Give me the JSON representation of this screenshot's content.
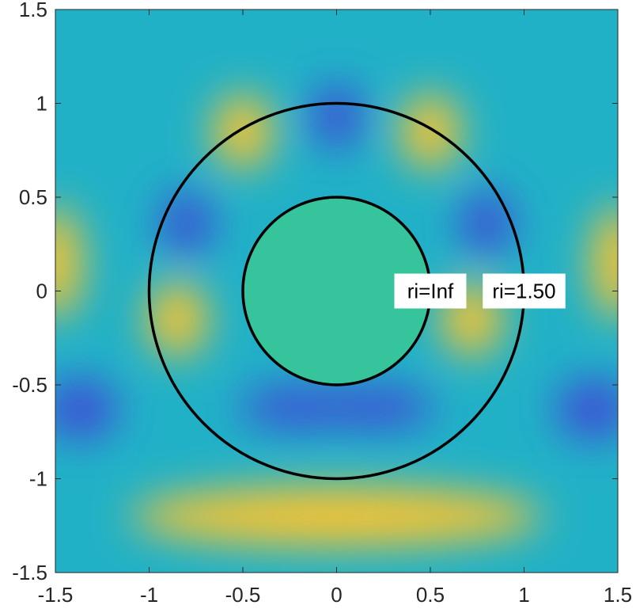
{
  "chart_data": {
    "type": "heatmap",
    "title": "",
    "xlabel": "",
    "ylabel": "",
    "xlim": [
      -1.5,
      1.5
    ],
    "ylim": [
      -1.5,
      1.5
    ],
    "xticks": [
      -1.5,
      -1,
      -0.5,
      0,
      0.5,
      1,
      1.5
    ],
    "yticks": [
      -1.5,
      -1,
      -0.5,
      0,
      0.5,
      1,
      1.5
    ],
    "xtick_labels": [
      "-1.5",
      "-1",
      "-0.5",
      "0",
      "0.5",
      "1",
      "1.5"
    ],
    "ytick_labels": [
      "-1.5",
      "-1",
      "-0.5",
      "0",
      "0.5",
      "1",
      "1.5"
    ],
    "colormap": "parula",
    "grid": false,
    "legend": "none",
    "inner_disk_color": "#35c49c",
    "circles": [
      {
        "cx": 0,
        "cy": 0,
        "r": 0.5,
        "label": "ri=Inf"
      },
      {
        "cx": 0,
        "cy": 0,
        "r": 1.0,
        "label": "ri=1.50"
      }
    ],
    "field_features": [
      {
        "x": 0.0,
        "y": 0.93,
        "level": "low"
      },
      {
        "x": -0.8,
        "y": 0.36,
        "level": "low"
      },
      {
        "x": 0.8,
        "y": 0.36,
        "level": "low"
      },
      {
        "x": -1.37,
        "y": -0.63,
        "level": "low"
      },
      {
        "x": 1.37,
        "y": -0.63,
        "level": "low"
      },
      {
        "x": -0.2,
        "y": -0.62,
        "level": "low"
      },
      {
        "x": 0.2,
        "y": -0.62,
        "level": "low"
      },
      {
        "x": -0.5,
        "y": 0.85,
        "level": "high"
      },
      {
        "x": 0.5,
        "y": 0.85,
        "level": "high"
      },
      {
        "x": -0.85,
        "y": -0.15,
        "level": "high"
      },
      {
        "x": 0.72,
        "y": -0.15,
        "level": "high"
      },
      {
        "x": 0.0,
        "y": -1.2,
        "level": "high"
      },
      {
        "x": -1.5,
        "y": 0.15,
        "level": "high"
      },
      {
        "x": 1.5,
        "y": 0.15,
        "level": "high"
      }
    ]
  }
}
